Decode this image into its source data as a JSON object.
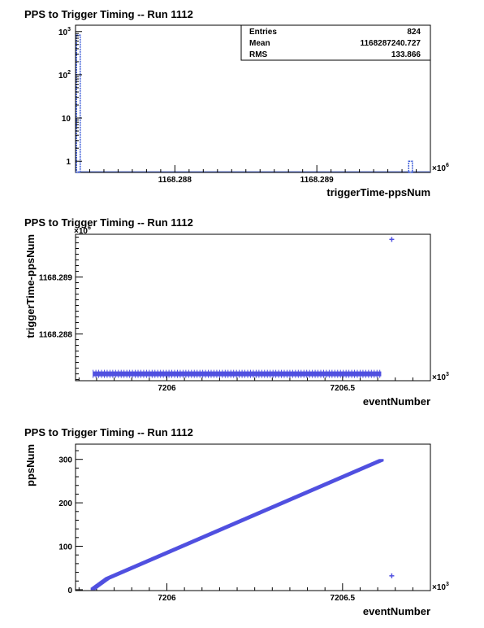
{
  "chart_data": [
    {
      "type": "bar",
      "title": "PPS to Trigger Timing -- Run 1112",
      "xlabel": "triggerTime-ppsNum",
      "ylabel": "",
      "x_multiplier": "×10",
      "x_multiplier_exp": "6",
      "y_scale": "log",
      "xlim": [
        1168287.3,
        1168289.8
      ],
      "ylim": [
        0.55,
        1400
      ],
      "x_ticks": [
        {
          "value": 1168288,
          "label": "1168.288"
        },
        {
          "value": 1168289,
          "label": "1168.289"
        }
      ],
      "y_ticks": [
        {
          "value": 1,
          "base": "1",
          "exp": ""
        },
        {
          "value": 10,
          "base": "10",
          "exp": ""
        },
        {
          "value": 100,
          "base": "10",
          "exp": "2"
        },
        {
          "value": 1000,
          "base": "10",
          "exp": "3"
        }
      ],
      "bins": [
        {
          "x": 1168287.32,
          "value": 823
        },
        {
          "x": 1168289.66,
          "value": 1
        }
      ],
      "bin_width": 0.026,
      "stats": {
        "rows": [
          {
            "label": "Entries",
            "value": "824"
          },
          {
            "label": "Mean",
            "value": "1168287240.727"
          },
          {
            "label": "RMS",
            "value": "133.866"
          }
        ]
      },
      "grid": false
    },
    {
      "type": "scatter",
      "title": "PPS to Trigger Timing -- Run 1112",
      "xlabel": "eventNumber",
      "ylabel": "triggerTime-ppsNum",
      "x_multiplier": "×10",
      "x_multiplier_exp": "3",
      "y_multiplier": "×10",
      "y_multiplier_exp": "6",
      "xlim": [
        7205.74,
        7206.75
      ],
      "ylim": [
        1168287.18,
        1168289.75
      ],
      "x_ticks": [
        {
          "value": 7206,
          "label": "7206"
        },
        {
          "value": 7206.5,
          "label": "7206.5"
        }
      ],
      "y_ticks": [
        {
          "value": 1168288,
          "label": "1168.288"
        },
        {
          "value": 1168289,
          "label": "1168.289"
        }
      ],
      "series": [
        {
          "x_start": 7205.79,
          "x_end": 7206.61,
          "y": 1168287.3,
          "style": "dense-line"
        },
        {
          "points": [
            [
              7206.64,
              1168289.66
            ]
          ]
        }
      ],
      "marker_color": "#5050e0",
      "grid": false
    },
    {
      "type": "scatter",
      "title": "PPS to Trigger Timing -- Run 1112",
      "xlabel": "eventNumber",
      "ylabel": "ppsNum",
      "x_multiplier": "×10",
      "x_multiplier_exp": "3",
      "xlim": [
        7205.74,
        7206.75
      ],
      "ylim": [
        -2,
        335
      ],
      "x_ticks": [
        {
          "value": 7206,
          "label": "7206"
        },
        {
          "value": 7206.5,
          "label": "7206.5"
        }
      ],
      "y_ticks": [
        {
          "value": 0,
          "label": "0"
        },
        {
          "value": 100,
          "label": "100"
        },
        {
          "value": 200,
          "label": "200"
        },
        {
          "value": 300,
          "label": "300"
        }
      ],
      "series": [
        {
          "x_start": 7205.79,
          "x_end": 7206.61,
          "y_start": 2,
          "y_end": 298,
          "style": "dense-ramp"
        },
        {
          "points": [
            [
              7206.64,
              32
            ]
          ]
        }
      ],
      "marker_color": "#5050e0",
      "grid": false
    }
  ]
}
